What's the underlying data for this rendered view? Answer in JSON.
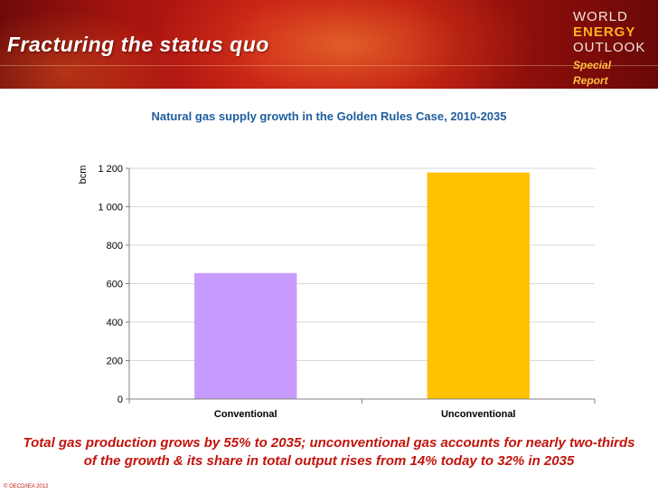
{
  "header": {
    "title": "Fracturing the status quo",
    "logo": {
      "line1": "WORLD",
      "line2": "ENERGY",
      "line3": "OUTLOOK",
      "line4": "Special Report"
    }
  },
  "chart_data": {
    "type": "bar",
    "title": "Natural gas supply growth in the Golden Rules Case, 2010-2035",
    "ylabel": "bcm",
    "categories": [
      "Conventional",
      "Unconventional"
    ],
    "values": [
      655,
      1178
    ],
    "ylim": [
      0,
      1200
    ],
    "yticks": [
      0,
      200,
      400,
      600,
      800,
      1000,
      1200
    ],
    "ytick_labels": [
      "0",
      "200",
      "400",
      "600",
      "800",
      "1 000",
      "1 200"
    ],
    "bar_colors": [
      "#c89bff",
      "#ffc000"
    ],
    "grid": true
  },
  "caption": {
    "line1": "Total gas production grows by 55% to 2035; unconventional gas accounts for nearly two-thirds",
    "line2": "of the growth & its share in total output rises from 14% today to 32% in 2035"
  },
  "footer": {
    "copyright": "© OECD/IEA 2012"
  }
}
